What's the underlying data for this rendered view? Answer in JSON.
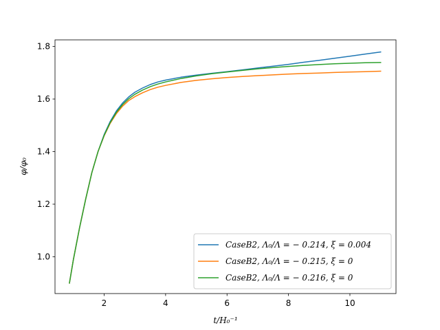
{
  "chart_data": {
    "type": "line",
    "title": "",
    "xlabel": "t/H₀⁻¹",
    "ylabel": "φ/φ₀",
    "xlim": [
      0.4,
      11.5
    ],
    "ylim": [
      0.86,
      1.825
    ],
    "xticks": [
      2,
      4,
      6,
      8,
      10
    ],
    "yticks": [
      1.0,
      1.2,
      1.4,
      1.6,
      1.8
    ],
    "grid": false,
    "legend_position": "lower-right",
    "series": [
      {
        "name": "CaseB2, Λ₀/Λ = − 0.214, ξ = 0.004",
        "color": "#1f77b4",
        "x": [
          0.87,
          1.0,
          1.2,
          1.4,
          1.6,
          1.8,
          2.0,
          2.2,
          2.4,
          2.6,
          2.8,
          3.0,
          3.25,
          3.5,
          3.75,
          4.0,
          4.5,
          5.0,
          5.5,
          6.0,
          6.5,
          7.0,
          7.5,
          8.0,
          8.5,
          9.0,
          9.5,
          10.0,
          10.5,
          11.0
        ],
        "y": [
          0.9,
          0.99,
          1.11,
          1.22,
          1.32,
          1.4,
          1.465,
          1.515,
          1.555,
          1.585,
          1.608,
          1.626,
          1.642,
          1.655,
          1.665,
          1.672,
          1.683,
          1.691,
          1.698,
          1.704,
          1.711,
          1.718,
          1.725,
          1.732,
          1.74,
          1.747,
          1.755,
          1.763,
          1.771,
          1.779
        ]
      },
      {
        "name": "CaseB2, Λ₀/Λ = − 0.215, ξ = 0",
        "color": "#ff7f0e",
        "x": [
          0.87,
          1.0,
          1.2,
          1.4,
          1.6,
          1.8,
          2.0,
          2.2,
          2.4,
          2.6,
          2.8,
          3.0,
          3.25,
          3.5,
          3.75,
          4.0,
          4.5,
          5.0,
          5.5,
          6.0,
          6.5,
          7.0,
          7.5,
          8.0,
          8.5,
          9.0,
          9.5,
          10.0,
          10.5,
          11.0
        ],
        "y": [
          0.9,
          0.99,
          1.11,
          1.22,
          1.32,
          1.4,
          1.46,
          1.508,
          1.545,
          1.573,
          1.594,
          1.609,
          1.624,
          1.636,
          1.645,
          1.652,
          1.663,
          1.671,
          1.677,
          1.682,
          1.686,
          1.689,
          1.692,
          1.695,
          1.697,
          1.699,
          1.701,
          1.703,
          1.704,
          1.706
        ]
      },
      {
        "name": "CaseB2, Λ₀/Λ = − 0.216, ξ = 0",
        "color": "#2ca02c",
        "x": [
          0.87,
          1.0,
          1.2,
          1.4,
          1.6,
          1.8,
          2.0,
          2.2,
          2.4,
          2.6,
          2.8,
          3.0,
          3.25,
          3.5,
          3.75,
          4.0,
          4.5,
          5.0,
          5.5,
          6.0,
          6.5,
          7.0,
          7.5,
          8.0,
          8.5,
          9.0,
          9.5,
          10.0,
          10.5,
          11.0
        ],
        "y": [
          0.9,
          0.99,
          1.11,
          1.22,
          1.32,
          1.4,
          1.462,
          1.511,
          1.55,
          1.579,
          1.601,
          1.618,
          1.634,
          1.647,
          1.657,
          1.665,
          1.678,
          1.688,
          1.696,
          1.703,
          1.709,
          1.715,
          1.72,
          1.724,
          1.728,
          1.731,
          1.734,
          1.736,
          1.738,
          1.739
        ]
      }
    ]
  }
}
